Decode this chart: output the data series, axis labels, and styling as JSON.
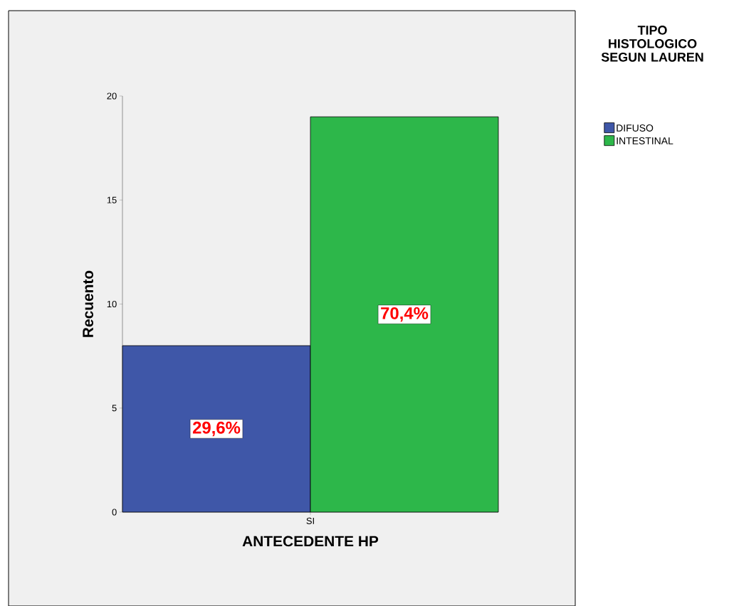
{
  "chart_data": {
    "type": "bar",
    "categories": [
      "SI"
    ],
    "xlabel": "ANTECEDENTE HP",
    "ylabel": "Recuento",
    "legend_title": "TIPO HISTOLOGICO SEGUN LAUREN",
    "series": [
      {
        "name": "DIFUSO",
        "color": "#3f57a8",
        "values": [
          8
        ]
      },
      {
        "name": "INTESTINAL",
        "color": "#2db74a",
        "values": [
          19
        ]
      }
    ],
    "annotations": [
      "29,6%",
      "70,4%"
    ],
    "ylim": [
      0,
      20
    ],
    "yticks": [
      0,
      5,
      10,
      15,
      20
    ],
    "grid": false,
    "legend": "right"
  }
}
